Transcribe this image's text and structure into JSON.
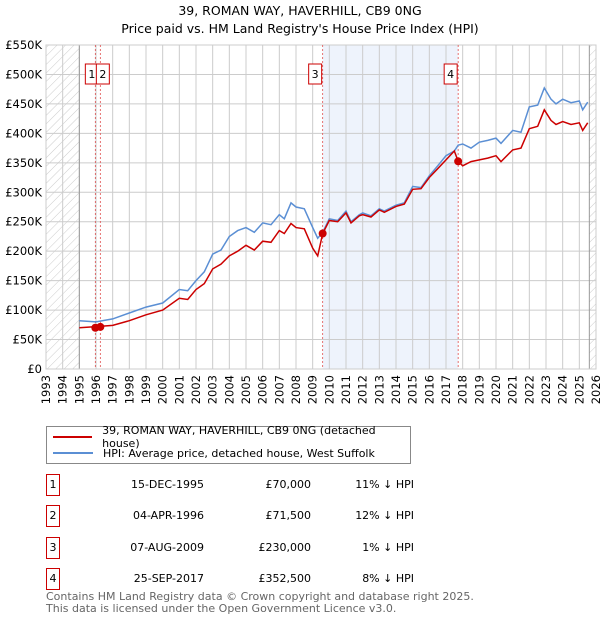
{
  "title": "39, ROMAN WAY, HAVERHILL, CB9 0NG",
  "subtitle": "Price paid vs. HM Land Registry's House Price Index (HPI)",
  "chart_data": {
    "type": "line",
    "title": "39, ROMAN WAY, HAVERHILL, CB9 0NG — Price paid vs. HM Land Registry's House Price Index (HPI)",
    "xlim": [
      1993,
      2026
    ],
    "ylim": [
      0,
      550000
    ],
    "x_ticks": [
      "1993",
      "1994",
      "1995",
      "1996",
      "1997",
      "1998",
      "1999",
      "2000",
      "2001",
      "2002",
      "2003",
      "2004",
      "2005",
      "2006",
      "2007",
      "2008",
      "2009",
      "2010",
      "2011",
      "2012",
      "2013",
      "2014",
      "2015",
      "2016",
      "2017",
      "2018",
      "2019",
      "2020",
      "2021",
      "2022",
      "2023",
      "2024",
      "2025",
      "2026"
    ],
    "y_ticks": [
      {
        "v": 0,
        "label": "£0"
      },
      {
        "v": 50000,
        "label": "£50K"
      },
      {
        "v": 100000,
        "label": "£100K"
      },
      {
        "v": 150000,
        "label": "£150K"
      },
      {
        "v": 200000,
        "label": "£200K"
      },
      {
        "v": 250000,
        "label": "£250K"
      },
      {
        "v": 300000,
        "label": "£300K"
      },
      {
        "v": 350000,
        "label": "£350K"
      },
      {
        "v": 400000,
        "label": "£400K"
      },
      {
        "v": 450000,
        "label": "£450K"
      },
      {
        "v": 500000,
        "label": "£500K"
      },
      {
        "v": 550000,
        "label": "£550K"
      }
    ],
    "grid": true,
    "hatched_ranges": [
      [
        1993,
        1995
      ],
      [
        2025.6,
        2026
      ]
    ],
    "shaded_ranges": [
      [
        2009.6,
        2017.73
      ]
    ],
    "series": [
      {
        "name": "39, ROMAN WAY, HAVERHILL, CB9 0NG (detached house)",
        "color": "#cc0000",
        "x": [
          1995,
          1996,
          1997,
          1998,
          1999,
          2000,
          2001,
          2001.5,
          2002,
          2002.5,
          2003,
          2003.5,
          2004,
          2004.5,
          2005,
          2005.5,
          2006,
          2006.5,
          2007,
          2007.3,
          2007.7,
          2008,
          2008.5,
          2009,
          2009.3,
          2009.6,
          2010,
          2010.5,
          2011,
          2011.3,
          2011.8,
          2012,
          2012.5,
          2013,
          2013.3,
          2014,
          2014.5,
          2015,
          2015.5,
          2016,
          2016.5,
          2017,
          2017.5,
          2017.73,
          2018,
          2018.5,
          2019,
          2019.5,
          2020,
          2020.3,
          2021,
          2021.5,
          2022,
          2022.5,
          2022.9,
          2023.3,
          2023.6,
          2024,
          2024.5,
          2025,
          2025.2,
          2025.5
        ],
        "y": [
          70000,
          72000,
          74000,
          82000,
          92000,
          100000,
          120000,
          118000,
          135000,
          145000,
          170000,
          178000,
          192000,
          200000,
          210000,
          202000,
          217000,
          215000,
          235000,
          230000,
          247000,
          240000,
          238000,
          205000,
          192000,
          230000,
          252000,
          250000,
          265000,
          248000,
          260000,
          262000,
          258000,
          270000,
          266000,
          276000,
          280000,
          305000,
          306000,
          325000,
          340000,
          355000,
          370000,
          352500,
          345000,
          352000,
          355000,
          358000,
          362000,
          352000,
          372000,
          375000,
          408000,
          412000,
          440000,
          422000,
          415000,
          420000,
          415000,
          418000,
          405000,
          418000
        ]
      },
      {
        "name": "HPI: Average price, detached house, West Suffolk",
        "color": "#5b8fd4",
        "x": [
          1995,
          1996,
          1997,
          1998,
          1999,
          2000,
          2001,
          2001.5,
          2002,
          2002.5,
          2003,
          2003.5,
          2004,
          2004.5,
          2005,
          2005.5,
          2006,
          2006.5,
          2007,
          2007.3,
          2007.7,
          2008,
          2008.5,
          2009,
          2009.3,
          2009.6,
          2010,
          2010.5,
          2011,
          2011.3,
          2011.8,
          2012,
          2012.5,
          2013,
          2013.3,
          2014,
          2014.5,
          2015,
          2015.5,
          2016,
          2016.5,
          2017,
          2017.5,
          2017.73,
          2018,
          2018.5,
          2019,
          2019.5,
          2020,
          2020.3,
          2021,
          2021.5,
          2022,
          2022.5,
          2022.9,
          2023.3,
          2023.6,
          2024,
          2024.5,
          2025,
          2025.2,
          2025.5
        ],
        "y": [
          82000,
          80000,
          85000,
          95000,
          105000,
          112000,
          135000,
          133000,
          150000,
          165000,
          195000,
          202000,
          225000,
          235000,
          240000,
          232000,
          248000,
          245000,
          262000,
          255000,
          282000,
          275000,
          272000,
          240000,
          222000,
          232000,
          255000,
          252000,
          268000,
          250000,
          262000,
          265000,
          260000,
          272000,
          268000,
          278000,
          282000,
          310000,
          308000,
          328000,
          345000,
          362000,
          370000,
          380000,
          382000,
          375000,
          385000,
          388000,
          392000,
          383000,
          405000,
          402000,
          445000,
          448000,
          477000,
          458000,
          450000,
          458000,
          452000,
          455000,
          440000,
          453000
        ]
      }
    ],
    "sales": [
      {
        "label": "1",
        "date": "15-DEC-1995",
        "x": 1995.96,
        "price": 70000,
        "price_label": "£70,000",
        "hpi": "11% ↓ HPI"
      },
      {
        "label": "2",
        "date": "04-APR-1996",
        "x": 1996.26,
        "price": 71500,
        "price_label": "£71,500",
        "hpi": "12% ↓ HPI"
      },
      {
        "label": "3",
        "date": "07-AUG-2009",
        "x": 2009.6,
        "price": 230000,
        "price_label": "£230,000",
        "hpi": "1% ↓ HPI"
      },
      {
        "label": "4",
        "date": "25-SEP-2017",
        "x": 2017.73,
        "price": 352500,
        "price_label": "£352,500",
        "hpi": "8% ↓ HPI"
      }
    ],
    "legend_position": "below"
  },
  "legend": {
    "property": "39, ROMAN WAY, HAVERHILL, CB9 0NG (detached house)",
    "hpi": "HPI: Average price, detached house, West Suffolk"
  },
  "footer": {
    "line1": "Contains HM Land Registry data © Crown copyright and database right 2025.",
    "line2": "This data is licensed under the Open Government Licence v3.0."
  }
}
